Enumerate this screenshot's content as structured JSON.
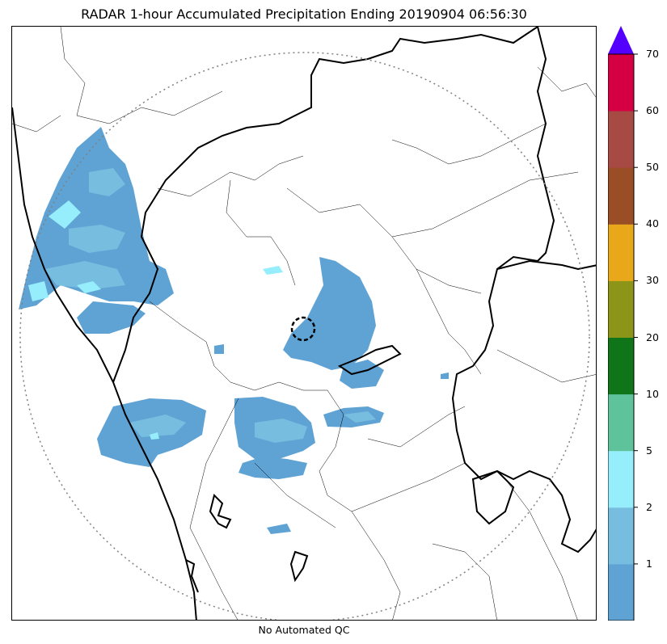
{
  "title": "RADAR 1-hour Accumulated Precipitation Ending 20190904 06:56:30",
  "footer_note": "No Automated QC",
  "colorbar": {
    "segments": [
      {
        "color": "#5fa2d4"
      },
      {
        "color": "#76bde0"
      },
      {
        "color": "#96eefc"
      },
      {
        "color": "#5ec39b"
      },
      {
        "color": "#0f7518"
      },
      {
        "color": "#8c9517"
      },
      {
        "color": "#e8a81a"
      },
      {
        "color": "#9a4e26"
      },
      {
        "color": "#a84a44"
      },
      {
        "color": "#d40043"
      }
    ],
    "extend_color": "#5300ff",
    "tick_labels": [
      "1",
      "2",
      "5",
      "10",
      "20",
      "30",
      "40",
      "50",
      "60",
      "70"
    ]
  },
  "colors": {
    "light_rain": "#5fa2d4",
    "moderate_rain": "#76bde0",
    "heavy_rain": "#96eefc",
    "range_ring": "#808080",
    "coastline": "#000000"
  }
}
